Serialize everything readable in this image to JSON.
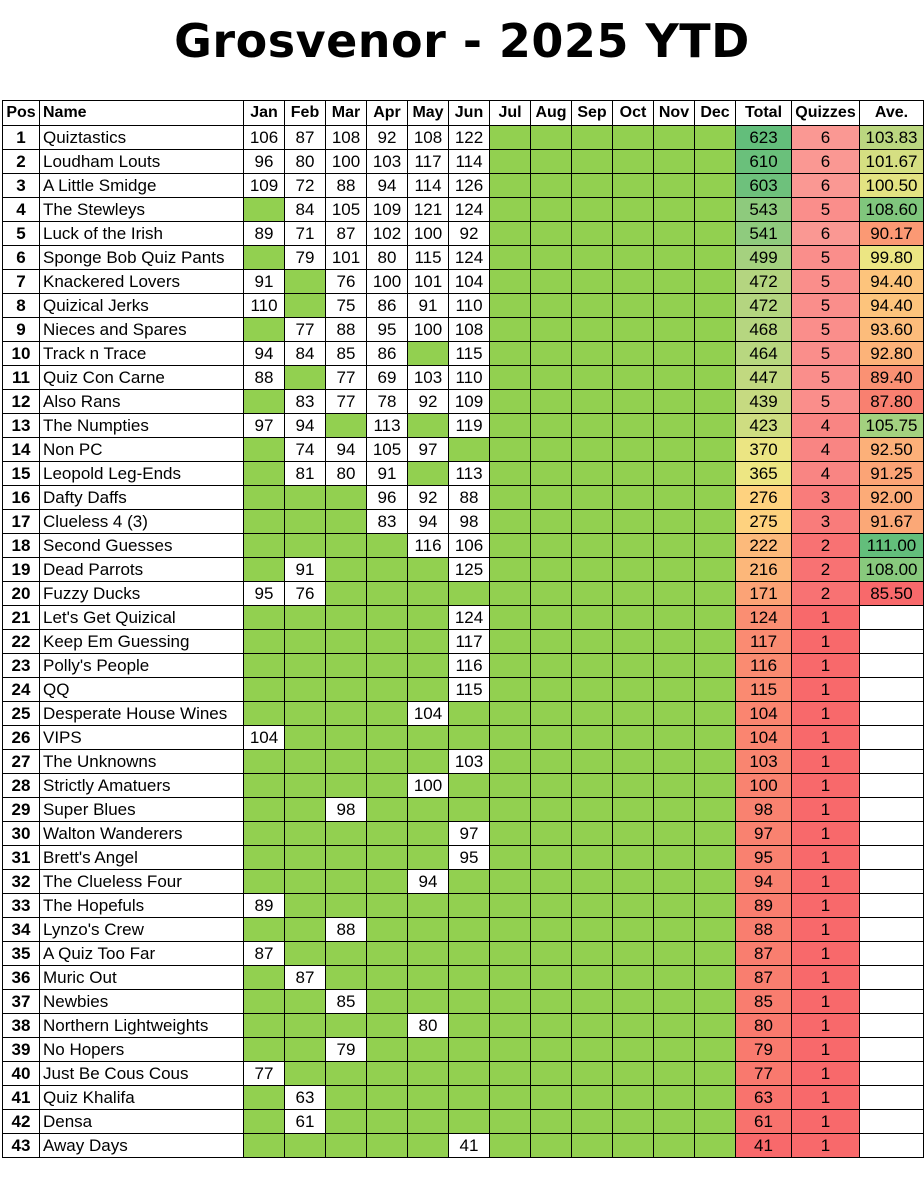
{
  "title": "Grosvenor - 2025 YTD",
  "headers": [
    "Pos",
    "Name",
    "Jan",
    "Feb",
    "Mar",
    "Apr",
    "May",
    "Jun",
    "Jul",
    "Aug",
    "Sep",
    "Oct",
    "Nov",
    "Dec",
    "Total",
    "Quizzes",
    "Ave."
  ],
  "colors": {
    "played": "#ffffff",
    "not_played": "#92d050"
  },
  "rows": [
    {
      "pos": "1",
      "name": "Quiztastics",
      "months": [
        "106",
        "87",
        "108",
        "92",
        "108",
        "122",
        "",
        "",
        "",
        "",
        "",
        ""
      ],
      "total": "623",
      "quizzes": "6",
      "ave": "103.83"
    },
    {
      "pos": "2",
      "name": "Loudham Louts",
      "months": [
        "96",
        "80",
        "100",
        "103",
        "117",
        "114",
        "",
        "",
        "",
        "",
        "",
        ""
      ],
      "total": "610",
      "quizzes": "6",
      "ave": "101.67"
    },
    {
      "pos": "3",
      "name": "A Little Smidge",
      "months": [
        "109",
        "72",
        "88",
        "94",
        "114",
        "126",
        "",
        "",
        "",
        "",
        "",
        ""
      ],
      "total": "603",
      "quizzes": "6",
      "ave": "100.50"
    },
    {
      "pos": "4",
      "name": "The Stewleys",
      "months": [
        "",
        "84",
        "105",
        "109",
        "121",
        "124",
        "",
        "",
        "",
        "",
        "",
        ""
      ],
      "total": "543",
      "quizzes": "5",
      "ave": "108.60"
    },
    {
      "pos": "5",
      "name": "Luck of the Irish",
      "months": [
        "89",
        "71",
        "87",
        "102",
        "100",
        "92",
        "",
        "",
        "",
        "",
        "",
        ""
      ],
      "total": "541",
      "quizzes": "6",
      "ave": "90.17"
    },
    {
      "pos": "6",
      "name": "Sponge Bob Quiz Pants",
      "months": [
        "",
        "79",
        "101",
        "80",
        "115",
        "124",
        "",
        "",
        "",
        "",
        "",
        ""
      ],
      "total": "499",
      "quizzes": "5",
      "ave": "99.80"
    },
    {
      "pos": "7",
      "name": "Knackered Lovers",
      "months": [
        "91",
        "",
        "76",
        "100",
        "101",
        "104",
        "",
        "",
        "",
        "",
        "",
        ""
      ],
      "total": "472",
      "quizzes": "5",
      "ave": "94.40"
    },
    {
      "pos": "8",
      "name": "Quizical Jerks",
      "months": [
        "110",
        "",
        "75",
        "86",
        "91",
        "110",
        "",
        "",
        "",
        "",
        "",
        ""
      ],
      "total": "472",
      "quizzes": "5",
      "ave": "94.40"
    },
    {
      "pos": "9",
      "name": "Nieces and Spares",
      "months": [
        "",
        "77",
        "88",
        "95",
        "100",
        "108",
        "",
        "",
        "",
        "",
        "",
        ""
      ],
      "total": "468",
      "quizzes": "5",
      "ave": "93.60"
    },
    {
      "pos": "10",
      "name": "Track n Trace",
      "months": [
        "94",
        "84",
        "85",
        "86",
        "",
        "115",
        "",
        "",
        "",
        "",
        "",
        ""
      ],
      "total": "464",
      "quizzes": "5",
      "ave": "92.80"
    },
    {
      "pos": "11",
      "name": "Quiz Con Carne",
      "months": [
        "88",
        "",
        "77",
        "69",
        "103",
        "110",
        "",
        "",
        "",
        "",
        "",
        ""
      ],
      "total": "447",
      "quizzes": "5",
      "ave": "89.40"
    },
    {
      "pos": "12",
      "name": "Also Rans",
      "months": [
        "",
        "83",
        "77",
        "78",
        "92",
        "109",
        "",
        "",
        "",
        "",
        "",
        ""
      ],
      "total": "439",
      "quizzes": "5",
      "ave": "87.80"
    },
    {
      "pos": "13",
      "name": "The Numpties",
      "months": [
        "97",
        "94",
        "",
        "113",
        "",
        "119",
        "",
        "",
        "",
        "",
        "",
        ""
      ],
      "total": "423",
      "quizzes": "4",
      "ave": "105.75"
    },
    {
      "pos": "14",
      "name": "Non PC",
      "months": [
        "",
        "74",
        "94",
        "105",
        "97",
        "",
        "",
        "",
        "",
        "",
        "",
        ""
      ],
      "total": "370",
      "quizzes": "4",
      "ave": "92.50"
    },
    {
      "pos": "15",
      "name": "Leopold Leg-Ends",
      "months": [
        "",
        "81",
        "80",
        "91",
        "",
        "113",
        "",
        "",
        "",
        "",
        "",
        ""
      ],
      "total": "365",
      "quizzes": "4",
      "ave": "91.25"
    },
    {
      "pos": "16",
      "name": "Dafty Daffs",
      "months": [
        "",
        "",
        "",
        "96",
        "92",
        "88",
        "",
        "",
        "",
        "",
        "",
        ""
      ],
      "total": "276",
      "quizzes": "3",
      "ave": "92.00"
    },
    {
      "pos": "17",
      "name": "Clueless 4 (3)",
      "months": [
        "",
        "",
        "",
        "83",
        "94",
        "98",
        "",
        "",
        "",
        "",
        "",
        ""
      ],
      "total": "275",
      "quizzes": "3",
      "ave": "91.67"
    },
    {
      "pos": "18",
      "name": "Second Guesses",
      "months": [
        "",
        "",
        "",
        "",
        "116",
        "106",
        "",
        "",
        "",
        "",
        "",
        ""
      ],
      "total": "222",
      "quizzes": "2",
      "ave": "111.00"
    },
    {
      "pos": "19",
      "name": "Dead Parrots",
      "months": [
        "",
        "91",
        "",
        "",
        "",
        "125",
        "",
        "",
        "",
        "",
        "",
        ""
      ],
      "total": "216",
      "quizzes": "2",
      "ave": "108.00"
    },
    {
      "pos": "20",
      "name": "Fuzzy Ducks",
      "months": [
        "95",
        "76",
        "",
        "",
        "",
        "",
        "",
        "",
        "",
        "",
        "",
        ""
      ],
      "total": "171",
      "quizzes": "2",
      "ave": "85.50"
    },
    {
      "pos": "21",
      "name": "Let's Get Quizical",
      "months": [
        "",
        "",
        "",
        "",
        "",
        "124",
        "",
        "",
        "",
        "",
        "",
        ""
      ],
      "total": "124",
      "quizzes": "1",
      "ave": ""
    },
    {
      "pos": "22",
      "name": "Keep Em Guessing",
      "months": [
        "",
        "",
        "",
        "",
        "",
        "117",
        "",
        "",
        "",
        "",
        "",
        ""
      ],
      "total": "117",
      "quizzes": "1",
      "ave": ""
    },
    {
      "pos": "23",
      "name": "Polly's People",
      "months": [
        "",
        "",
        "",
        "",
        "",
        "116",
        "",
        "",
        "",
        "",
        "",
        ""
      ],
      "total": "116",
      "quizzes": "1",
      "ave": ""
    },
    {
      "pos": "24",
      "name": "QQ",
      "months": [
        "",
        "",
        "",
        "",
        "",
        "115",
        "",
        "",
        "",
        "",
        "",
        ""
      ],
      "total": "115",
      "quizzes": "1",
      "ave": ""
    },
    {
      "pos": "25",
      "name": "Desperate House Wines",
      "months": [
        "",
        "",
        "",
        "",
        "104",
        "",
        "",
        "",
        "",
        "",
        "",
        ""
      ],
      "total": "104",
      "quizzes": "1",
      "ave": ""
    },
    {
      "pos": "26",
      "name": "VIPS",
      "months": [
        "104",
        "",
        "",
        "",
        "",
        "",
        "",
        "",
        "",
        "",
        "",
        ""
      ],
      "total": "104",
      "quizzes": "1",
      "ave": ""
    },
    {
      "pos": "27",
      "name": "The Unknowns",
      "months": [
        "",
        "",
        "",
        "",
        "",
        "103",
        "",
        "",
        "",
        "",
        "",
        ""
      ],
      "total": "103",
      "quizzes": "1",
      "ave": ""
    },
    {
      "pos": "28",
      "name": "Strictly Amatuers",
      "months": [
        "",
        "",
        "",
        "",
        "100",
        "",
        "",
        "",
        "",
        "",
        "",
        ""
      ],
      "total": "100",
      "quizzes": "1",
      "ave": ""
    },
    {
      "pos": "29",
      "name": "Super Blues",
      "months": [
        "",
        "",
        "98",
        "",
        "",
        "",
        "",
        "",
        "",
        "",
        "",
        ""
      ],
      "total": "98",
      "quizzes": "1",
      "ave": ""
    },
    {
      "pos": "30",
      "name": "Walton Wanderers",
      "months": [
        "",
        "",
        "",
        "",
        "",
        "97",
        "",
        "",
        "",
        "",
        "",
        ""
      ],
      "total": "97",
      "quizzes": "1",
      "ave": ""
    },
    {
      "pos": "31",
      "name": "Brett's Angel",
      "months": [
        "",
        "",
        "",
        "",
        "",
        "95",
        "",
        "",
        "",
        "",
        "",
        ""
      ],
      "total": "95",
      "quizzes": "1",
      "ave": ""
    },
    {
      "pos": "32",
      "name": "The Clueless Four",
      "months": [
        "",
        "",
        "",
        "",
        "94",
        "",
        "",
        "",
        "",
        "",
        "",
        ""
      ],
      "total": "94",
      "quizzes": "1",
      "ave": ""
    },
    {
      "pos": "33",
      "name": "The Hopefuls",
      "months": [
        "89",
        "",
        "",
        "",
        "",
        "",
        "",
        "",
        "",
        "",
        "",
        ""
      ],
      "total": "89",
      "quizzes": "1",
      "ave": ""
    },
    {
      "pos": "34",
      "name": "Lynzo's Crew",
      "months": [
        "",
        "",
        "88",
        "",
        "",
        "",
        "",
        "",
        "",
        "",
        "",
        ""
      ],
      "total": "88",
      "quizzes": "1",
      "ave": ""
    },
    {
      "pos": "35",
      "name": "A Quiz Too Far",
      "months": [
        "87",
        "",
        "",
        "",
        "",
        "",
        "",
        "",
        "",
        "",
        "",
        ""
      ],
      "total": "87",
      "quizzes": "1",
      "ave": ""
    },
    {
      "pos": "36",
      "name": "Muric Out",
      "months": [
        "",
        "87",
        "",
        "",
        "",
        "",
        "",
        "",
        "",
        "",
        "",
        ""
      ],
      "total": "87",
      "quizzes": "1",
      "ave": ""
    },
    {
      "pos": "37",
      "name": "Newbies",
      "months": [
        "",
        "",
        "85",
        "",
        "",
        "",
        "",
        "",
        "",
        "",
        "",
        ""
      ],
      "total": "85",
      "quizzes": "1",
      "ave": ""
    },
    {
      "pos": "38",
      "name": "Northern Lightweights",
      "months": [
        "",
        "",
        "",
        "",
        "80",
        "",
        "",
        "",
        "",
        "",
        "",
        ""
      ],
      "total": "80",
      "quizzes": "1",
      "ave": ""
    },
    {
      "pos": "39",
      "name": "No Hopers",
      "months": [
        "",
        "",
        "79",
        "",
        "",
        "",
        "",
        "",
        "",
        "",
        "",
        ""
      ],
      "total": "79",
      "quizzes": "1",
      "ave": ""
    },
    {
      "pos": "40",
      "name": "Just Be Cous Cous",
      "months": [
        "77",
        "",
        "",
        "",
        "",
        "",
        "",
        "",
        "",
        "",
        "",
        ""
      ],
      "total": "77",
      "quizzes": "1",
      "ave": ""
    },
    {
      "pos": "41",
      "name": "Quiz Khalifa",
      "months": [
        "",
        "63",
        "",
        "",
        "",
        "",
        "",
        "",
        "",
        "",
        "",
        ""
      ],
      "total": "63",
      "quizzes": "1",
      "ave": ""
    },
    {
      "pos": "42",
      "name": "Densa",
      "months": [
        "",
        "61",
        "",
        "",
        "",
        "",
        "",
        "",
        "",
        "",
        "",
        ""
      ],
      "total": "61",
      "quizzes": "1",
      "ave": ""
    },
    {
      "pos": "43",
      "name": "Away Days",
      "months": [
        "",
        "",
        "",
        "",
        "",
        "41",
        "",
        "",
        "",
        "",
        "",
        ""
      ],
      "total": "41",
      "quizzes": "1",
      "ave": ""
    }
  ]
}
